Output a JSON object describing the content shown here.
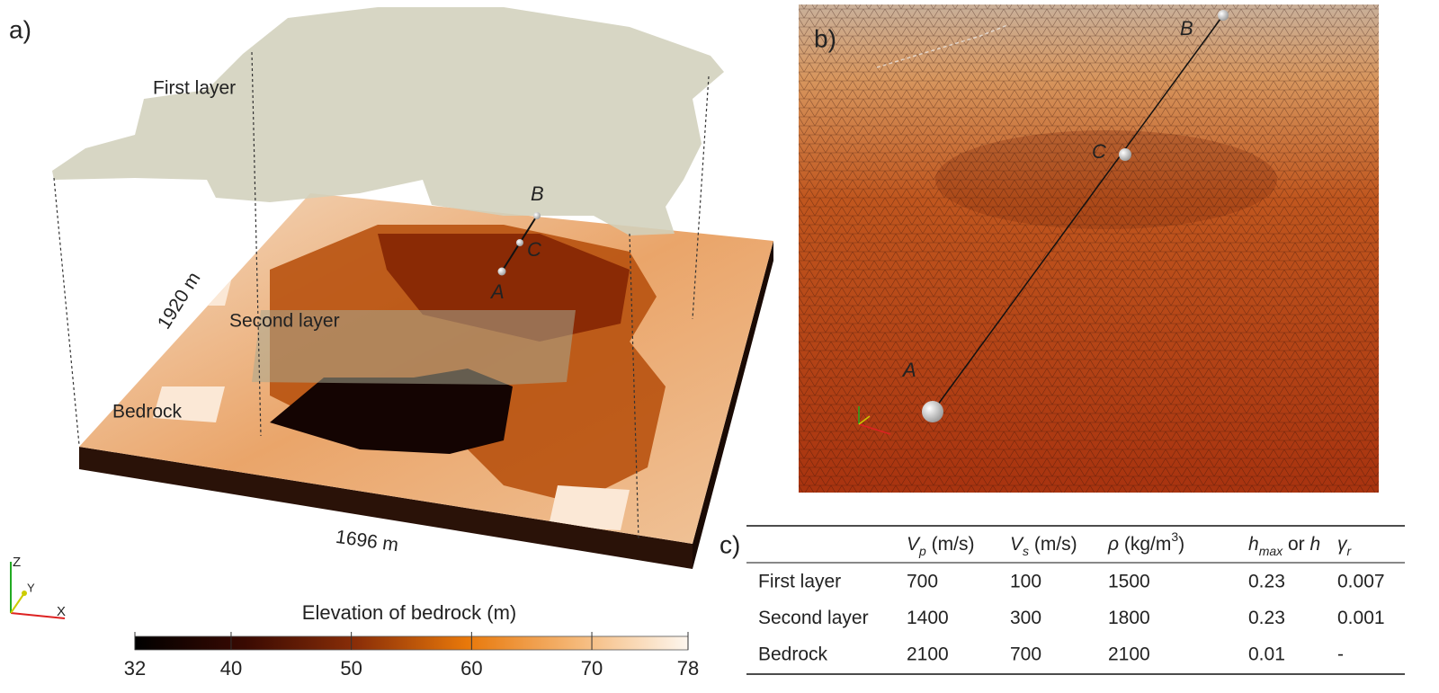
{
  "panel_a": {
    "label": "a)",
    "layers": [
      "First layer",
      "Second layer",
      "Bedrock"
    ],
    "width_label": "1920 m",
    "length_label": "1696 m",
    "points": [
      "A",
      "C",
      "B"
    ],
    "axes_triad": [
      "Z",
      "Y",
      "X"
    ]
  },
  "panel_b": {
    "label": "b)",
    "points": [
      "A",
      "C",
      "B"
    ]
  },
  "colorbar": {
    "title": "Elevation of bedrock (m)",
    "lim": [
      32,
      78
    ],
    "ticks": [
      32,
      40,
      50,
      60,
      70,
      78
    ],
    "colors": [
      "#000000",
      "#3a0a02",
      "#8a2e08",
      "#e8780a",
      "#f5b878",
      "#fdf6ee"
    ]
  },
  "table": {
    "label": "c)",
    "header": [
      [
        {
          "text": "V",
          "style": "italic"
        },
        {
          "text": "p",
          "style": "sub"
        },
        {
          "text": " (m/s)"
        }
      ],
      [
        {
          "text": "V",
          "style": "italic"
        },
        {
          "text": "s",
          "style": "sub"
        },
        {
          "text": " (m/s)"
        }
      ],
      [
        {
          "text": "ρ",
          "style": "italic"
        },
        {
          "text": " (kg/m"
        },
        {
          "text": "3",
          "style": "sup"
        },
        {
          "text": ")"
        }
      ],
      [
        {
          "text": "h",
          "style": "italic"
        },
        {
          "text": "max",
          "style": "sub"
        },
        {
          "text": " or "
        },
        {
          "text": "h",
          "style": "italic"
        }
      ],
      [
        {
          "text": "γ",
          "style": "italic"
        },
        {
          "text": "r",
          "style": "sub"
        }
      ]
    ],
    "rows": [
      [
        "First layer",
        "700",
        "100",
        "1500",
        "0.23",
        "0.007"
      ],
      [
        "Second layer",
        "1400",
        "300",
        "1800",
        "0.23",
        "0.001"
      ],
      [
        "Bedrock",
        "2100",
        "700",
        "2100",
        "0.01",
        "-"
      ]
    ]
  }
}
